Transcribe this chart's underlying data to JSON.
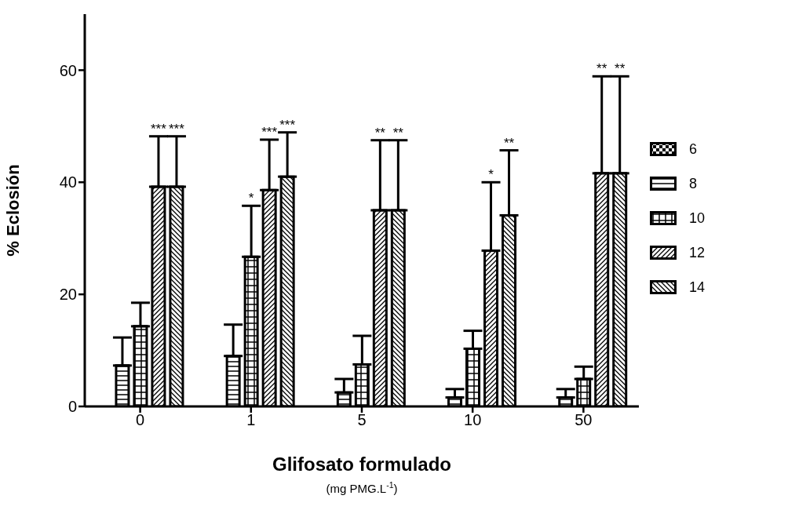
{
  "chart_data": {
    "type": "bar",
    "xlabel": "Glifosato formulado\n(mg PMG.L$^{-1}$)",
    "ylabel": "% Eclosión",
    "categories": [
      "0",
      "1",
      "5",
      "10",
      "50"
    ],
    "series": [
      {
        "name": "6",
        "color": "#000000",
        "values": [
          0,
          0,
          0,
          0,
          0
        ]
      },
      {
        "name": "8",
        "color": "#000000",
        "values": [
          7.3,
          9.0,
          2.5,
          1.6,
          1.6
        ],
        "errors": [
          [
            7.3,
            12.3
          ],
          [
            9.0,
            14.6
          ],
          [
            2.5,
            4.9
          ],
          [
            1.6,
            3.1
          ],
          [
            1.6,
            3.1
          ]
        ]
      },
      {
        "name": "10",
        "color": "#000000",
        "values": [
          14.3,
          26.7,
          7.5,
          10.3,
          4.9
        ],
        "errors": [
          [
            14.3,
            18.5
          ],
          [
            26.7,
            35.8
          ],
          [
            7.5,
            12.6
          ],
          [
            10.3,
            13.5
          ],
          [
            4.9,
            7.1
          ]
        ]
      },
      {
        "name": "12",
        "color": "#000000",
        "values": [
          39.2,
          38.6,
          35.0,
          27.8,
          41.6
        ],
        "errors": [
          [
            39.2,
            48.2
          ],
          [
            38.6,
            47.6
          ],
          [
            35.0,
            47.5
          ],
          [
            27.8,
            40.0
          ],
          [
            41.6,
            58.9
          ]
        ]
      },
      {
        "name": "14",
        "color": "#000000",
        "values": [
          39.2,
          41.0,
          35.0,
          34.1,
          41.6
        ],
        "errors": [
          [
            39.2,
            48.2
          ],
          [
            41.0,
            48.9
          ],
          [
            35.0,
            47.5
          ],
          [
            34.1,
            45.7
          ],
          [
            41.6,
            58.9
          ]
        ]
      }
    ],
    "ylim": [
      0,
      70
    ],
    "yticks": [
      0,
      20,
      40,
      60
    ],
    "grid": false,
    "legend": "right",
    "annotations": [
      "***",
      "***",
      "*",
      "***",
      "***",
      "**",
      "**",
      "*",
      "**",
      "**",
      "**"
    ]
  }
}
